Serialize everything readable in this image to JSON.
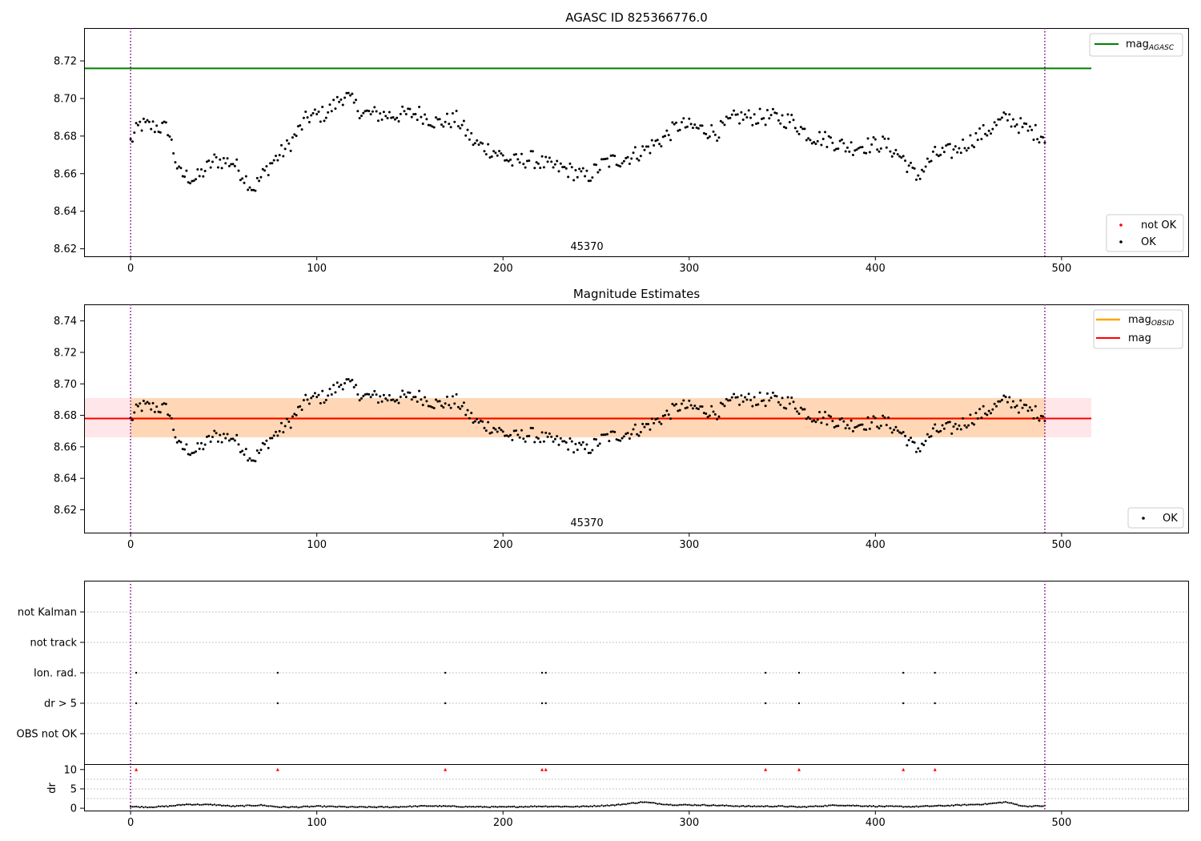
{
  "chart_data": [
    {
      "type": "scatter",
      "title": "AGASC ID 825366776.0",
      "annotation": "45370",
      "xlim": [
        -25,
        568
      ],
      "ylim": [
        8.616,
        8.7375
      ],
      "yticks": [
        8.62,
        8.64,
        8.66,
        8.68,
        8.7,
        8.72
      ],
      "ytick_labels": [
        "8.62",
        "8.64",
        "8.66",
        "8.68",
        "8.70",
        "8.72"
      ],
      "xticks": [
        0,
        100,
        200,
        300,
        400,
        500
      ],
      "xtick_labels": [
        "0",
        "100",
        "200",
        "300",
        "400",
        "500"
      ],
      "grid": false,
      "vlines": [
        0,
        491
      ],
      "hline": {
        "name": "mag_AGASC",
        "y": 8.716,
        "x_range": [
          -25,
          516
        ],
        "color": "#008000"
      },
      "legend_lines": {
        "placement": "upper right",
        "entries": [
          {
            "name": "mag",
            "sub": "AGASC",
            "color": "#008000"
          }
        ]
      },
      "legend_points": {
        "placement": "lower right",
        "entries": [
          {
            "name": "not OK",
            "color": "#ff0000"
          },
          {
            "name": "OK",
            "color": "#000000"
          }
        ]
      },
      "series": [
        {
          "name": "OK",
          "color": "#000000",
          "x_range": [
            0,
            491
          ],
          "anchors_x": [
            0,
            5,
            20,
            26,
            35,
            45,
            55,
            66,
            75,
            85,
            95,
            105,
            115,
            125,
            140,
            155,
            165,
            175,
            185,
            195,
            205,
            215,
            225,
            235,
            245,
            255,
            265,
            275,
            285,
            295,
            305,
            315,
            325,
            335,
            345,
            355,
            365,
            375,
            385,
            395,
            405,
            415,
            422,
            432,
            442,
            452,
            462,
            471,
            480,
            491
          ],
          "anchors_y": [
            8.677,
            8.686,
            8.684,
            8.66,
            8.657,
            8.667,
            8.666,
            8.652,
            8.665,
            8.675,
            8.69,
            8.692,
            8.702,
            8.692,
            8.691,
            8.692,
            8.687,
            8.689,
            8.676,
            8.672,
            8.666,
            8.668,
            8.664,
            8.662,
            8.658,
            8.666,
            8.668,
            8.672,
            8.678,
            8.686,
            8.684,
            8.682,
            8.69,
            8.69,
            8.69,
            8.688,
            8.68,
            8.678,
            8.674,
            8.675,
            8.676,
            8.668,
            8.658,
            8.67,
            8.672,
            8.678,
            8.684,
            8.69,
            8.684,
            8.68
          ],
          "noise": 0.0045
        }
      ]
    },
    {
      "type": "scatter",
      "title": "Magnitude Estimates",
      "annotation": "45370",
      "xlim": [
        -25,
        568
      ],
      "ylim": [
        8.6055,
        8.7505
      ],
      "yticks": [
        8.62,
        8.64,
        8.66,
        8.68,
        8.7,
        8.72,
        8.74
      ],
      "ytick_labels": [
        "8.62",
        "8.64",
        "8.66",
        "8.68",
        "8.70",
        "8.72",
        "8.74"
      ],
      "xticks": [
        0,
        100,
        200,
        300,
        400,
        500
      ],
      "xtick_labels": [
        "0",
        "100",
        "200",
        "300",
        "400",
        "500"
      ],
      "grid": false,
      "vlines": [
        0,
        491
      ],
      "mag_obsid": {
        "name": "mag_OBSID",
        "y": 8.678,
        "band": [
          8.666,
          8.691
        ],
        "x_range": [
          0,
          491
        ],
        "color": "#ffa500"
      },
      "mag": {
        "name": "mag",
        "y": 8.678,
        "band": [
          8.666,
          8.691
        ],
        "x_range": [
          -25,
          516
        ],
        "color": "#ff0000"
      },
      "legend_lines": {
        "placement": "upper right",
        "entries": [
          {
            "name": "mag",
            "sub": "OBSID",
            "color": "#ffa500"
          },
          {
            "name": "mag",
            "sub": "",
            "color": "#ff0000"
          }
        ]
      },
      "legend_points": {
        "placement": "lower right",
        "entries": [
          {
            "name": "OK",
            "color": "#000000"
          }
        ]
      },
      "series": [
        {
          "name": "OK",
          "same_as_panel": 0
        }
      ]
    },
    {
      "type": "scatter",
      "title": "",
      "xlim": [
        -25,
        568
      ],
      "xticks": [
        0,
        100,
        200,
        300,
        400,
        500
      ],
      "xtick_labels": [
        "0",
        "100",
        "200",
        "300",
        "400",
        "500"
      ],
      "vlines": [
        0,
        491
      ],
      "flag_rows": [
        "not Kalman",
        "not track",
        "Ion. rad.",
        "dr > 5",
        "OBS not OK"
      ],
      "flag_points": {
        "Ion. rad.": [
          3,
          79,
          169,
          221,
          223,
          341,
          359,
          415,
          432
        ],
        "dr > 5": [
          3,
          79,
          169,
          221,
          223,
          341,
          359,
          415,
          432
        ]
      },
      "dr": {
        "ylabel": "dr",
        "ylim": [
          -0.6,
          11.2
        ],
        "yticks": [
          0,
          5,
          10
        ],
        "ytick_labels": [
          "0",
          "5",
          "10"
        ],
        "dotted_y": [
          2.5,
          5,
          7.5
        ],
        "clipped_markers_x": [
          3,
          79,
          169,
          221,
          223,
          341,
          359,
          415,
          432
        ],
        "clipped_value": 10,
        "anchors_x": [
          0,
          10,
          20,
          30,
          45,
          55,
          70,
          80,
          90,
          100,
          120,
          140,
          160,
          180,
          200,
          220,
          240,
          260,
          275,
          290,
          310,
          330,
          350,
          360,
          380,
          400,
          420,
          440,
          460,
          470,
          480,
          491
        ],
        "anchors_y": [
          0.4,
          0.3,
          0.5,
          1.0,
          0.9,
          0.5,
          0.8,
          0.3,
          0.3,
          0.5,
          0.3,
          0.3,
          0.6,
          0.4,
          0.3,
          0.5,
          0.4,
          0.8,
          1.6,
          0.9,
          0.8,
          0.5,
          0.5,
          0.3,
          0.8,
          0.5,
          0.4,
          0.7,
          1.1,
          1.6,
          0.5,
          0.6
        ]
      }
    }
  ]
}
